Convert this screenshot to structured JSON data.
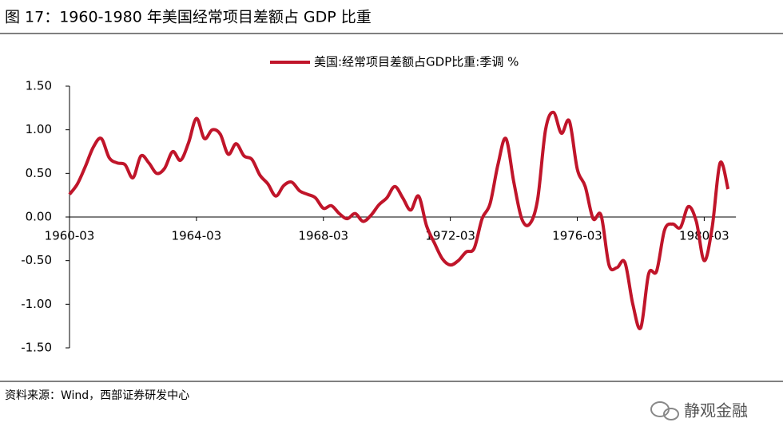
{
  "chart_data": {
    "type": "line",
    "title": "图 17：1960-1980 年美国经常项目差额占 GDP 比重",
    "source": "资料来源：Wind，西部证券研发中心",
    "watermark": "静观金融",
    "categories": [
      "1960-03",
      null,
      null,
      null,
      null,
      null,
      null,
      null,
      null,
      null,
      null,
      null,
      null,
      null,
      null,
      null,
      "1964-03",
      null,
      null,
      null,
      null,
      null,
      null,
      null,
      null,
      null,
      null,
      null,
      null,
      null,
      null,
      null,
      "1968-03",
      null,
      null,
      null,
      null,
      null,
      null,
      null,
      null,
      null,
      null,
      null,
      null,
      null,
      null,
      null,
      "1972-03",
      null,
      null,
      null,
      null,
      null,
      null,
      null,
      null,
      null,
      null,
      null,
      null,
      null,
      null,
      null,
      "1976-03",
      null,
      null,
      null,
      null,
      null,
      null,
      null,
      null,
      null,
      null,
      null,
      null,
      null,
      null,
      null,
      "1980-03",
      null,
      null,
      null
    ],
    "series": [
      {
        "name": "美国:经常项目差额占GDP比重:季调 %",
        "color": "#c0152a",
        "values": [
          0.26,
          0.38,
          0.58,
          0.8,
          0.9,
          0.68,
          0.62,
          0.6,
          0.45,
          0.7,
          0.62,
          0.5,
          0.56,
          0.75,
          0.65,
          0.85,
          1.13,
          0.9,
          1.0,
          0.95,
          0.72,
          0.84,
          0.7,
          0.66,
          0.48,
          0.38,
          0.24,
          0.36,
          0.4,
          0.3,
          0.26,
          0.22,
          0.1,
          0.13,
          0.04,
          -0.02,
          0.04,
          -0.05,
          0.02,
          0.14,
          0.22,
          0.35,
          0.22,
          0.08,
          0.24,
          -0.1,
          -0.3,
          -0.48,
          -0.55,
          -0.5,
          -0.4,
          -0.36,
          -0.02,
          0.15,
          0.6,
          0.9,
          0.4,
          -0.02,
          -0.08,
          0.2,
          1.0,
          1.2,
          0.96,
          1.1,
          0.55,
          0.35,
          -0.02,
          0.02,
          -0.55,
          -0.58,
          -0.52,
          -1.0,
          -1.27,
          -0.65,
          -0.62,
          -0.15,
          -0.08,
          -0.12,
          0.12,
          -0.05,
          -0.5,
          -0.12,
          0.62,
          0.32
        ]
      }
    ],
    "ylim": [
      -1.5,
      1.5
    ],
    "yticks": [
      {
        "value": 1.5,
        "label": "1.50"
      },
      {
        "value": 1.0,
        "label": "1.00"
      },
      {
        "value": 0.5,
        "label": "0.50"
      },
      {
        "value": 0,
        "label": "0.00"
      },
      {
        "value": -0.5,
        "label": "-0.50"
      },
      {
        "value": -1.0,
        "label": "-1.00"
      },
      {
        "value": -1.5,
        "label": "-1.50"
      }
    ],
    "legend": "top"
  }
}
